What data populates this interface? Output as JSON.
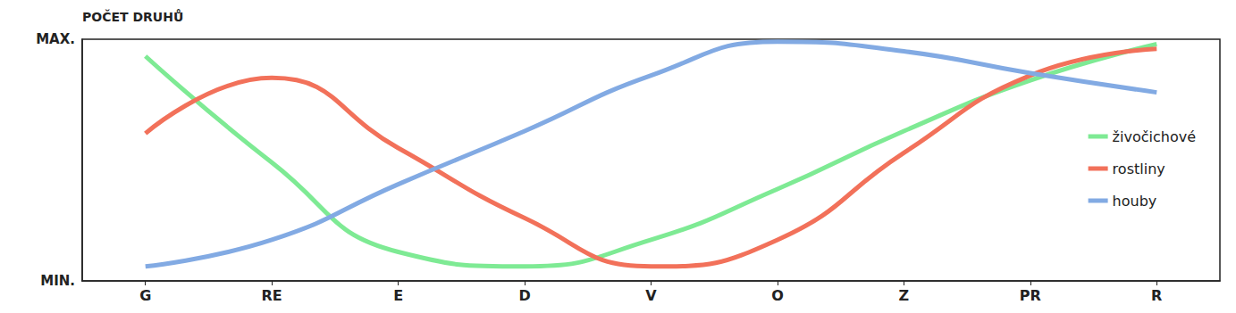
{
  "chart_data": {
    "type": "line",
    "y_label": "POČET DRUHŮ",
    "categories": [
      "G",
      "RE",
      "E",
      "D",
      "V",
      "O",
      "Z",
      "PR",
      "R"
    ],
    "series": [
      {
        "name": "živočichové",
        "color": "#7eea94",
        "values": [
          93,
          49,
          12,
          6,
          17,
          38,
          62,
          83,
          98
        ]
      },
      {
        "name": "rostliny",
        "color": "#f2715a",
        "values": [
          61,
          84,
          55,
          26,
          6,
          17,
          53,
          85,
          96
        ]
      },
      {
        "name": "houby",
        "color": "#82aae3",
        "values": [
          6,
          17,
          40,
          62,
          85,
          99,
          95,
          86,
          78
        ]
      }
    ],
    "ylim": [
      0,
      100
    ],
    "yticks": [
      {
        "value": 0,
        "label": "MIN."
      },
      {
        "value": 100,
        "label": "MAX."
      }
    ],
    "grid": false,
    "legend": "right",
    "line_style": "smooth"
  }
}
